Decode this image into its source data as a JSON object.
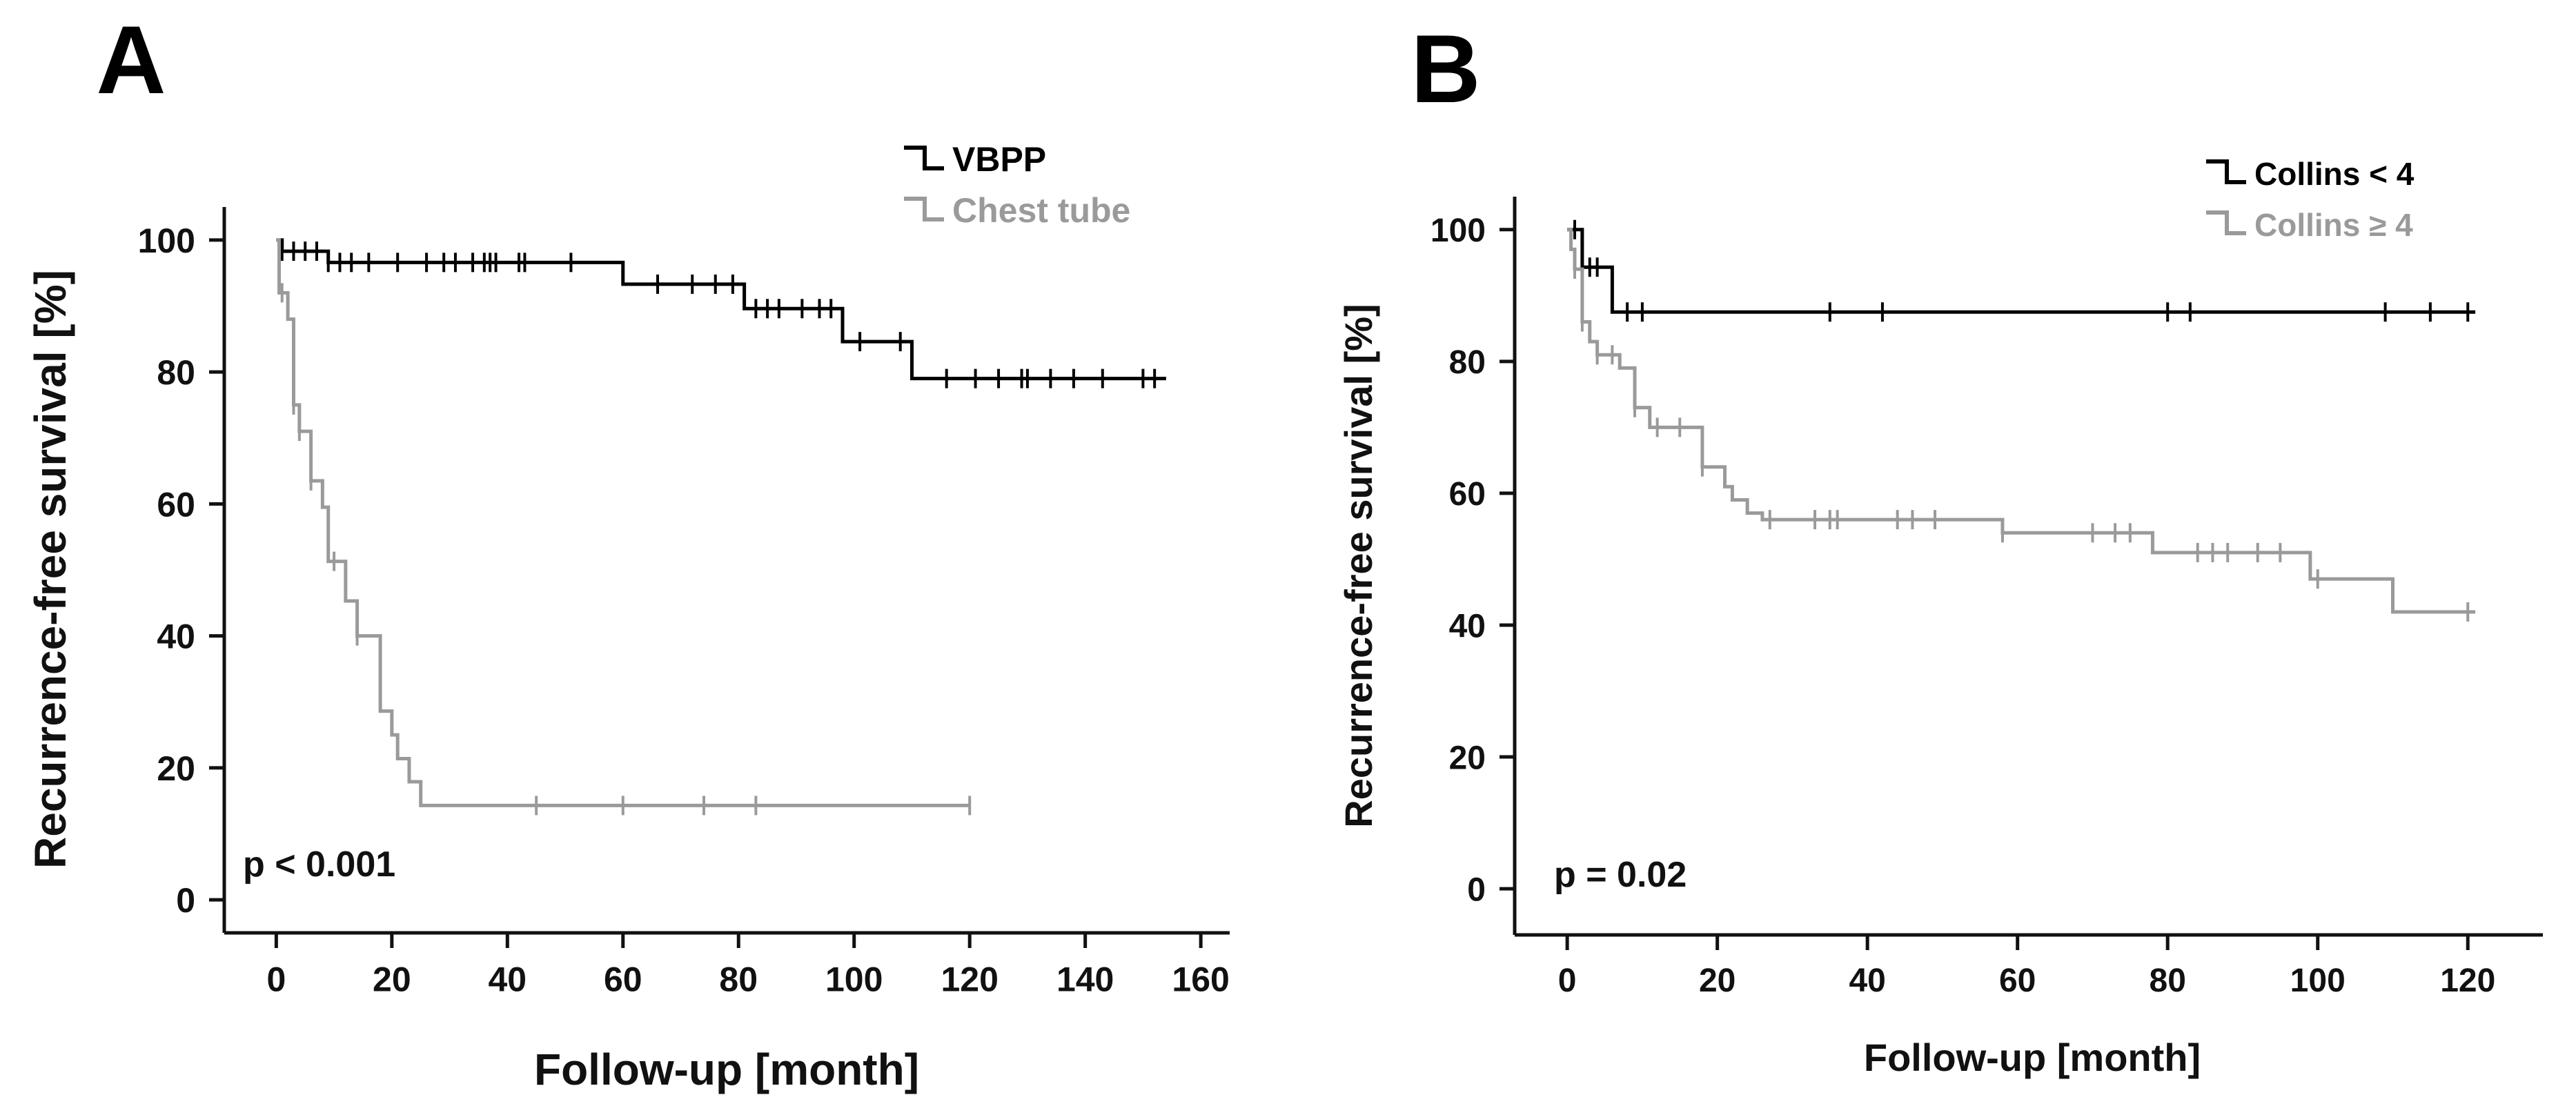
{
  "figure": {
    "panel_letters": [
      "A",
      "B"
    ]
  },
  "chart_data": [
    {
      "type": "line",
      "panel": "A",
      "title": "",
      "xlabel": "Follow-up [month]",
      "ylabel": "Recurrence-free survival [%]",
      "xlim": [
        -9,
        165
      ],
      "ylim": [
        -5,
        105
      ],
      "xticks": [
        0,
        20,
        40,
        60,
        80,
        100,
        120,
        140,
        160
      ],
      "yticks": [
        0,
        20,
        40,
        60,
        80,
        100
      ],
      "annotation": "p < 0.001",
      "legend_position": "top-right",
      "series": [
        {
          "name": "VBPP",
          "color": "#000000",
          "step_points": [
            [
              0,
              100
            ],
            [
              1,
              98.3
            ],
            [
              8,
              98.3
            ],
            [
              9,
              96.6
            ],
            [
              59,
              96.6
            ],
            [
              60,
              93.3
            ],
            [
              80,
              93.3
            ],
            [
              81,
              89.6
            ],
            [
              97,
              89.6
            ],
            [
              98,
              84.6
            ],
            [
              109,
              84.6
            ],
            [
              110,
              79
            ],
            [
              154,
              79
            ]
          ],
          "censored": [
            [
              1,
              98.3
            ],
            [
              3,
              98.3
            ],
            [
              5,
              98.3
            ],
            [
              7,
              98.3
            ],
            [
              9,
              96.6
            ],
            [
              11,
              96.6
            ],
            [
              13,
              96.6
            ],
            [
              16,
              96.6
            ],
            [
              21,
              96.6
            ],
            [
              26,
              96.6
            ],
            [
              29,
              96.6
            ],
            [
              31,
              96.6
            ],
            [
              34,
              96.6
            ],
            [
              36,
              96.6
            ],
            [
              37,
              96.6
            ],
            [
              38,
              96.6
            ],
            [
              42,
              96.6
            ],
            [
              43,
              96.6
            ],
            [
              51,
              96.6
            ],
            [
              66,
              93.3
            ],
            [
              72,
              93.3
            ],
            [
              76,
              93.3
            ],
            [
              79,
              93.3
            ],
            [
              83,
              89.6
            ],
            [
              85,
              89.6
            ],
            [
              87,
              89.6
            ],
            [
              91,
              89.6
            ],
            [
              94,
              89.6
            ],
            [
              96,
              89.6
            ],
            [
              101,
              84.6
            ],
            [
              108,
              84.6
            ],
            [
              116,
              79
            ],
            [
              121,
              79
            ],
            [
              125,
              79
            ],
            [
              129,
              79
            ],
            [
              130,
              79
            ],
            [
              134,
              79
            ],
            [
              138,
              79
            ],
            [
              143,
              79
            ],
            [
              150,
              79
            ],
            [
              152,
              79
            ]
          ]
        },
        {
          "name": "Chest tube",
          "color": "#9a9a9a",
          "step_points": [
            [
              0,
              100
            ],
            [
              0.5,
              92
            ],
            [
              2,
              88
            ],
            [
              3,
              75
            ],
            [
              4,
              71
            ],
            [
              6,
              63.5
            ],
            [
              8,
              59.5
            ],
            [
              9,
              51.3
            ],
            [
              12,
              45.3
            ],
            [
              14,
              40
            ],
            [
              17,
              40
            ],
            [
              18,
              28.6
            ],
            [
              20,
              25
            ],
            [
              21,
              21.4
            ],
            [
              23,
              17.9
            ],
            [
              25,
              14.3
            ],
            [
              120,
              14.3
            ]
          ],
          "censored": [
            [
              1,
              92
            ],
            [
              3,
              75
            ],
            [
              4,
              71
            ],
            [
              6,
              63.5
            ],
            [
              10,
              51.3
            ],
            [
              14,
              40
            ],
            [
              45,
              14.3
            ],
            [
              60,
              14.3
            ],
            [
              74,
              14.3
            ],
            [
              83,
              14.3
            ],
            [
              120,
              14.3
            ]
          ]
        }
      ]
    },
    {
      "type": "line",
      "panel": "B",
      "title": "",
      "xlabel": "Follow-up [month]",
      "ylabel": "Recurrence-free survival [%]",
      "xlim": [
        -7,
        130
      ],
      "ylim": [
        -7,
        105
      ],
      "xticks": [
        0,
        20,
        40,
        60,
        80,
        100,
        120
      ],
      "yticks": [
        0,
        20,
        40,
        60,
        80,
        100
      ],
      "annotation": "p = 0.02",
      "legend_position": "top-right",
      "series": [
        {
          "name": "Collins < 4",
          "color": "#000000",
          "step_points": [
            [
              0,
              100
            ],
            [
              2,
              94.3
            ],
            [
              5,
              94.3
            ],
            [
              6,
              87.5
            ],
            [
              121,
              87.5
            ]
          ],
          "censored": [
            [
              1,
              100
            ],
            [
              3,
              94.3
            ],
            [
              4,
              94.3
            ],
            [
              8,
              87.5
            ],
            [
              10,
              87.5
            ],
            [
              35,
              87.5
            ],
            [
              42,
              87.5
            ],
            [
              80,
              87.5
            ],
            [
              83,
              87.5
            ],
            [
              109,
              87.5
            ],
            [
              115,
              87.5
            ],
            [
              120,
              87.5
            ]
          ]
        },
        {
          "name": "Collins ≥ 4",
          "color": "#9a9a9a",
          "step_points": [
            [
              0,
              100
            ],
            [
              0.5,
              97
            ],
            [
              1,
              94
            ],
            [
              2,
              86
            ],
            [
              3,
              83
            ],
            [
              4,
              81
            ],
            [
              7,
              79
            ],
            [
              9,
              73
            ],
            [
              11,
              70
            ],
            [
              18,
              64
            ],
            [
              21,
              61
            ],
            [
              22,
              59
            ],
            [
              24,
              57
            ],
            [
              26,
              56
            ],
            [
              57,
              56
            ],
            [
              58,
              54
            ],
            [
              77,
              54
            ],
            [
              78,
              51
            ],
            [
              98,
              51
            ],
            [
              99,
              47
            ],
            [
              109,
              47
            ],
            [
              110,
              42
            ],
            [
              121,
              42
            ]
          ],
          "censored": [
            [
              1,
              94
            ],
            [
              2,
              86
            ],
            [
              4,
              81
            ],
            [
              6,
              81
            ],
            [
              9,
              73
            ],
            [
              12,
              70
            ],
            [
              15,
              70
            ],
            [
              18,
              64
            ],
            [
              27,
              56
            ],
            [
              33,
              56
            ],
            [
              35,
              56
            ],
            [
              36,
              56
            ],
            [
              44,
              56
            ],
            [
              46,
              56
            ],
            [
              49,
              56
            ],
            [
              58,
              54
            ],
            [
              70,
              54
            ],
            [
              73,
              54
            ],
            [
              75,
              54
            ],
            [
              84,
              51
            ],
            [
              86,
              51
            ],
            [
              88,
              51
            ],
            [
              92,
              51
            ],
            [
              95,
              51
            ],
            [
              100,
              47
            ],
            [
              120,
              42
            ]
          ]
        }
      ]
    }
  ]
}
